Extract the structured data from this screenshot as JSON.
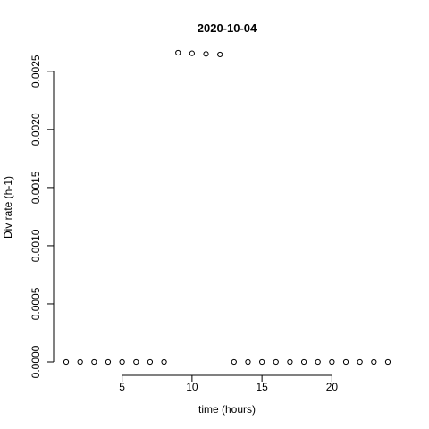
{
  "chart_data": {
    "type": "scatter",
    "title": "2020-10-04",
    "xlabel": "time (hours)",
    "ylabel": "Div rate (h-1)",
    "xlim": [
      0.04,
      24.96
    ],
    "ylim": [
      0,
      0.00266
    ],
    "x_ticks": [
      5,
      10,
      15,
      20
    ],
    "y_ticks": [
      "0.0000",
      "0.0005",
      "0.0010",
      "0.0015",
      "0.0020",
      "0.0025"
    ],
    "grid": false,
    "legend": "none",
    "marker": "open-circle",
    "series": [
      {
        "x": [
          1,
          2,
          3,
          4,
          5,
          6,
          7,
          8,
          9,
          10,
          11,
          12,
          13,
          14,
          15,
          16,
          17,
          18,
          19,
          20,
          21,
          22,
          23,
          24
        ],
        "y": [
          0,
          0,
          0,
          0,
          0,
          0,
          0,
          0,
          0.00266,
          0.002655,
          0.00265,
          0.002645,
          0,
          0,
          0,
          0,
          0,
          0,
          0,
          0,
          0,
          0,
          0,
          0
        ]
      }
    ]
  }
}
